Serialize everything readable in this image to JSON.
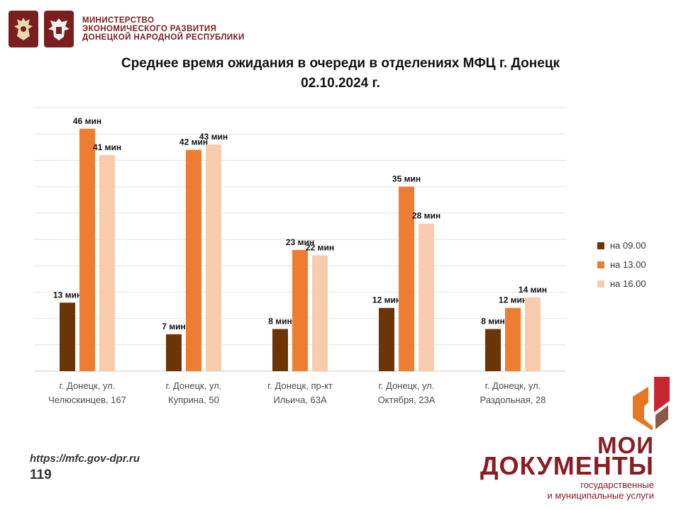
{
  "header": {
    "ministry_lines": [
      "МИНИСТЕРСТВО",
      "ЭКОНОМИЧЕСКОГО РАЗВИТИЯ",
      "ДОНЕЦКОЙ НАРОДНОЙ РЕСПУБЛИКИ"
    ],
    "emblem_icons": [
      "russian-eagle-icon",
      "dpr-eagle-icon"
    ]
  },
  "chart_data": {
    "type": "bar",
    "title_line1": "Среднее время ожидания в очереди в отделениях МФЦ г. Донецк",
    "title_line2": "02.10.2024 г.",
    "categories": [
      [
        "г. Донецк, ул.",
        "Челюскинцев, 167"
      ],
      [
        "г. Донецк, ул.",
        "Куприна, 50"
      ],
      [
        "г. Донецк, пр-кт",
        "Ильича, 63А"
      ],
      [
        "г. Донецк, ул.",
        "Октября, 23А"
      ],
      [
        "г. Донецк, ул.",
        "Раздольная, 28"
      ]
    ],
    "series": [
      {
        "name": "на 09.00",
        "color": "#6b3507",
        "values": [
          13,
          7,
          8,
          12,
          8
        ]
      },
      {
        "name": "на 13.00",
        "color": "#ed7d31",
        "values": [
          46,
          42,
          23,
          35,
          12
        ]
      },
      {
        "name": "на 16.00",
        "color": "#f8cbad",
        "values": [
          41,
          43,
          22,
          28,
          14
        ]
      }
    ],
    "value_suffix": " мин",
    "ylim": [
      0,
      50
    ],
    "grid": true,
    "legend_position": "right"
  },
  "footer": {
    "url": "https://mfc.gov-dpr.ru",
    "page_number": "119"
  },
  "logo": {
    "line1": "МОИ",
    "line2": "ДОКУМЕНТЫ",
    "sub1": "государственные",
    "sub2": "и муниципальные услуги",
    "icon": "moi-dokumenty-logo-icon"
  }
}
